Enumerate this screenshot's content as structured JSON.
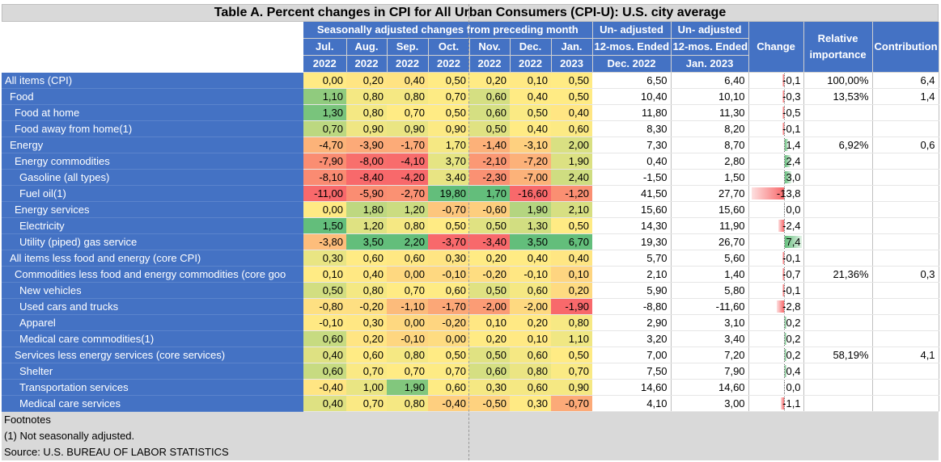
{
  "table": {
    "title": "Table A. Percent changes in CPI for All Urban Consumers (CPI-U): U.S. city average",
    "header": {
      "sa_group": "Seasonally adjusted changes from preceding month",
      "months": [
        {
          "top": "Jul.",
          "bottom": "2022"
        },
        {
          "top": "Aug.",
          "bottom": "2022"
        },
        {
          "top": "Sep.",
          "bottom": "2022"
        },
        {
          "top": "Oct.",
          "bottom": "2022"
        },
        {
          "top": "Nov.",
          "bottom": "2022"
        },
        {
          "top": "Dec.",
          "bottom": "2022"
        },
        {
          "top": "Jan.",
          "bottom": "2023"
        }
      ],
      "unadj1": [
        "Un- adjusted",
        "12-mos. Ended",
        "Dec. 2022"
      ],
      "unadj2": [
        "Un- adjusted",
        "12-mos. Ended",
        "Jan. 2023"
      ],
      "change": "Change",
      "relative": "Relative importance",
      "contribution": "Contribution"
    },
    "rows": [
      {
        "label": "All items (CPI)",
        "monthly": [
          "0,00",
          "0,20",
          "0,40",
          "0,50",
          "0,20",
          "0,10",
          "0,50"
        ],
        "m_num": [
          0.0,
          0.2,
          0.4,
          0.5,
          0.2,
          0.1,
          0.5
        ],
        "dec": "6,50",
        "jan": "6,40",
        "change": "-0,1",
        "change_num": -0.1,
        "relative": "100,00%",
        "contribution": "6,4"
      },
      {
        "label": "Food",
        "monthly": [
          "1,10",
          "0,80",
          "0,80",
          "0,70",
          "0,60",
          "0,40",
          "0,50"
        ],
        "m_num": [
          1.1,
          0.8,
          0.8,
          0.7,
          0.6,
          0.4,
          0.5
        ],
        "dec": "10,40",
        "jan": "10,10",
        "change": "-0,3",
        "change_num": -0.3,
        "relative": "13,53%",
        "contribution": "1,4"
      },
      {
        "label": "Food at home",
        "monthly": [
          "1,30",
          "0,80",
          "0,70",
          "0,50",
          "0,60",
          "0,50",
          "0,40"
        ],
        "m_num": [
          1.3,
          0.8,
          0.7,
          0.5,
          0.6,
          0.5,
          0.4
        ],
        "dec": "11,80",
        "jan": "11,30",
        "change": "-0,5",
        "change_num": -0.5,
        "relative": "",
        "contribution": ""
      },
      {
        "label": "Food away from home(1)",
        "monthly": [
          "0,70",
          "0,90",
          "0,90",
          "0,90",
          "0,50",
          "0,40",
          "0,60"
        ],
        "m_num": [
          0.7,
          0.9,
          0.9,
          0.9,
          0.5,
          0.4,
          0.6
        ],
        "dec": "8,30",
        "jan": "8,20",
        "change": "-0,1",
        "change_num": -0.1,
        "relative": "",
        "contribution": ""
      },
      {
        "label": "Energy",
        "monthly": [
          "-4,70",
          "-3,90",
          "-1,70",
          "1,70",
          "-1,40",
          "-3,10",
          "2,00"
        ],
        "m_num": [
          -4.7,
          -3.9,
          -1.7,
          1.7,
          -1.4,
          -3.1,
          2.0
        ],
        "dec": "7,30",
        "jan": "8,70",
        "change": "1,4",
        "change_num": 1.4,
        "relative": "6,92%",
        "contribution": "0,6"
      },
      {
        "label": "Energy commodities",
        "monthly": [
          "-7,90",
          "-8,00",
          "-4,10",
          "3,70",
          "-2,10",
          "-7,20",
          "1,90"
        ],
        "m_num": [
          -7.9,
          -8.0,
          -4.1,
          3.7,
          -2.1,
          -7.2,
          1.9
        ],
        "dec": "0,40",
        "jan": "2,80",
        "change": "2,4",
        "change_num": 2.4,
        "relative": "",
        "contribution": ""
      },
      {
        "label": "Gasoline (all types)",
        "monthly": [
          "-8,10",
          "-8,40",
          "-4,20",
          "3,40",
          "-2,30",
          "-7,00",
          "2,40"
        ],
        "m_num": [
          -8.1,
          -8.4,
          -4.2,
          3.4,
          -2.3,
          -7.0,
          2.4
        ],
        "dec": "-1,50",
        "jan": "1,50",
        "change": "3,0",
        "change_num": 3.0,
        "relative": "",
        "contribution": ""
      },
      {
        "label": "Fuel oil(1)",
        "monthly": [
          "-11,00",
          "-5,90",
          "-2,70",
          "19,80",
          "1,70",
          "-16,60",
          "-1,20"
        ],
        "m_num": [
          -11.0,
          -5.9,
          -2.7,
          19.8,
          1.7,
          -16.6,
          -1.2
        ],
        "dec": "41,50",
        "jan": "27,70",
        "change": "-13,8",
        "change_num": -13.8,
        "relative": "",
        "contribution": ""
      },
      {
        "label": "Energy services",
        "monthly": [
          "0,00",
          "1,80",
          "1,20",
          "-0,70",
          "-0,60",
          "1,90",
          "2,10"
        ],
        "m_num": [
          0.0,
          1.8,
          1.2,
          -0.7,
          -0.6,
          1.9,
          2.1
        ],
        "dec": "15,60",
        "jan": "15,60",
        "change": "0,0",
        "change_num": 0.0,
        "relative": "",
        "contribution": ""
      },
      {
        "label": "Electricity",
        "monthly": [
          "1,50",
          "1,20",
          "0,80",
          "0,50",
          "0,50",
          "1,30",
          "0,50"
        ],
        "m_num": [
          1.5,
          1.2,
          0.8,
          0.5,
          0.5,
          1.3,
          0.5
        ],
        "dec": "14,30",
        "jan": "11,90",
        "change": "-2,4",
        "change_num": -2.4,
        "relative": "",
        "contribution": ""
      },
      {
        "label": "Utility (piped) gas service",
        "monthly": [
          "-3,80",
          "3,50",
          "2,20",
          "-3,70",
          "-3,40",
          "3,50",
          "6,70"
        ],
        "m_num": [
          -3.8,
          3.5,
          2.2,
          -3.7,
          -3.4,
          3.5,
          6.7
        ],
        "dec": "19,30",
        "jan": "26,70",
        "change": "7,4",
        "change_num": 7.4,
        "relative": "",
        "contribution": ""
      },
      {
        "label": "All items less food and energy (core CPI)",
        "monthly": [
          "0,30",
          "0,60",
          "0,60",
          "0,30",
          "0,20",
          "0,40",
          "0,40"
        ],
        "m_num": [
          0.3,
          0.6,
          0.6,
          0.3,
          0.2,
          0.4,
          0.4
        ],
        "dec": "5,70",
        "jan": "5,60",
        "change": "-0,1",
        "change_num": -0.1,
        "relative": "",
        "contribution": ""
      },
      {
        "label": "Commodities less food and energy commodities (core goo",
        "monthly": [
          "0,10",
          "0,40",
          "0,00",
          "-0,10",
          "-0,20",
          "-0,10",
          "0,10"
        ],
        "m_num": [
          0.1,
          0.4,
          0.0,
          -0.1,
          -0.2,
          -0.1,
          0.1
        ],
        "dec": "2,10",
        "jan": "1,40",
        "change": "-0,7",
        "change_num": -0.7,
        "relative": "21,36%",
        "contribution": "0,3"
      },
      {
        "label": "New vehicles",
        "monthly": [
          "0,50",
          "0,80",
          "0,70",
          "0,60",
          "0,50",
          "0,60",
          "0,20"
        ],
        "m_num": [
          0.5,
          0.8,
          0.7,
          0.6,
          0.5,
          0.6,
          0.2
        ],
        "dec": "5,90",
        "jan": "5,80",
        "change": "-0,1",
        "change_num": -0.1,
        "relative": "",
        "contribution": ""
      },
      {
        "label": "Used cars and trucks",
        "monthly": [
          "-0,80",
          "-0,20",
          "-1,10",
          "-1,70",
          "-2,00",
          "-2,00",
          "-1,90"
        ],
        "m_num": [
          -0.8,
          -0.2,
          -1.1,
          -1.7,
          -2.0,
          -2.0,
          -1.9
        ],
        "dec": "-8,80",
        "jan": "-11,60",
        "change": "-2,8",
        "change_num": -2.8,
        "relative": "",
        "contribution": ""
      },
      {
        "label": "Apparel",
        "monthly": [
          "-0,10",
          "0,30",
          "0,00",
          "-0,20",
          "0,10",
          "0,20",
          "0,80"
        ],
        "m_num": [
          -0.1,
          0.3,
          0.0,
          -0.2,
          0.1,
          0.2,
          0.8
        ],
        "dec": "2,90",
        "jan": "3,10",
        "change": "0,2",
        "change_num": 0.2,
        "relative": "",
        "contribution": ""
      },
      {
        "label": "Medical care commodities(1)",
        "monthly": [
          "0,60",
          "0,20",
          "-0,10",
          "0,00",
          "0,20",
          "0,10",
          "1,10"
        ],
        "m_num": [
          0.6,
          0.2,
          -0.1,
          0.0,
          0.2,
          0.1,
          1.1
        ],
        "dec": "3,20",
        "jan": "3,40",
        "change": "0,2",
        "change_num": 0.2,
        "relative": "",
        "contribution": ""
      },
      {
        "label": "Services less energy services (core services)",
        "monthly": [
          "0,40",
          "0,60",
          "0,80",
          "0,50",
          "0,50",
          "0,60",
          "0,50"
        ],
        "m_num": [
          0.4,
          0.6,
          0.8,
          0.5,
          0.5,
          0.6,
          0.5
        ],
        "dec": "7,00",
        "jan": "7,20",
        "change": "0,2",
        "change_num": 0.2,
        "relative": "58,19%",
        "contribution": "4,1"
      },
      {
        "label": "Shelter",
        "monthly": [
          "0,60",
          "0,70",
          "0,70",
          "0,70",
          "0,60",
          "0,80",
          "0,70"
        ],
        "m_num": [
          0.6,
          0.7,
          0.7,
          0.7,
          0.6,
          0.8,
          0.7
        ],
        "dec": "7,50",
        "jan": "7,90",
        "change": "0,4",
        "change_num": 0.4,
        "relative": "",
        "contribution": ""
      },
      {
        "label": "Transportation services",
        "monthly": [
          "-0,40",
          "1,00",
          "1,90",
          "0,60",
          "0,30",
          "0,60",
          "0,90"
        ],
        "m_num": [
          -0.4,
          1.0,
          1.9,
          0.6,
          0.3,
          0.6,
          0.9
        ],
        "dec": "14,60",
        "jan": "14,60",
        "change": "0,0",
        "change_num": 0.0,
        "relative": "",
        "contribution": ""
      },
      {
        "label": "Medical care services",
        "monthly": [
          "0,40",
          "0,70",
          "0,80",
          "-0,40",
          "-0,50",
          "0,30",
          "-0,70"
        ],
        "m_num": [
          0.4,
          0.7,
          0.8,
          -0.4,
          -0.5,
          0.3,
          -0.7
        ],
        "dec": "4,10",
        "jan": "3,00",
        "change": "-1,1",
        "change_num": -1.1,
        "relative": "",
        "contribution": ""
      }
    ],
    "footnotes": [
      "Footnotes",
      "(1) Not seasonally adjusted.",
      "Source: U.S. BUREAU OF LABOR STATISTICS"
    ]
  }
}
